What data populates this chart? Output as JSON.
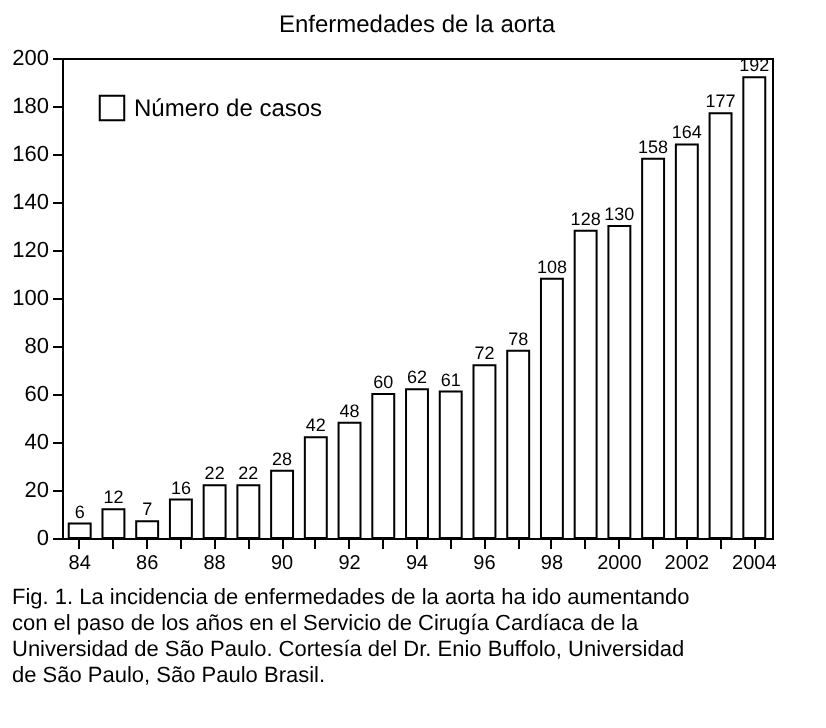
{
  "chart_data": {
    "type": "bar",
    "title": "Enfermedades de la aorta",
    "categories": [
      "84",
      null,
      "86",
      null,
      "88",
      null,
      "90",
      null,
      "92",
      null,
      "94",
      null,
      "96",
      null,
      "98",
      null,
      "2000",
      null,
      "2002",
      null,
      "2004"
    ],
    "series": [
      {
        "name": "Número de casos",
        "color": "#ffffff",
        "values": [
          6,
          12,
          7,
          16,
          22,
          22,
          28,
          42,
          48,
          60,
          62,
          61,
          72,
          78,
          108,
          128,
          130,
          158,
          164,
          177,
          192
        ]
      }
    ],
    "data_labels": true,
    "ylim": [
      0,
      200
    ],
    "yticks": [
      0,
      20,
      40,
      60,
      80,
      100,
      120,
      140,
      160,
      180,
      200
    ],
    "grid": false,
    "legend": "top left",
    "annotations": [
      "Fig. 1. La incidencia de enfermedades de la aorta ha ido aumentando con el paso de los años en el Servicio de Cirugía Cardíaca de la Universidad de São Paulo. Cortesía del Dr. Enio Buffolo, Universidad de São Paulo, São Paulo Brasil."
    ]
  }
}
